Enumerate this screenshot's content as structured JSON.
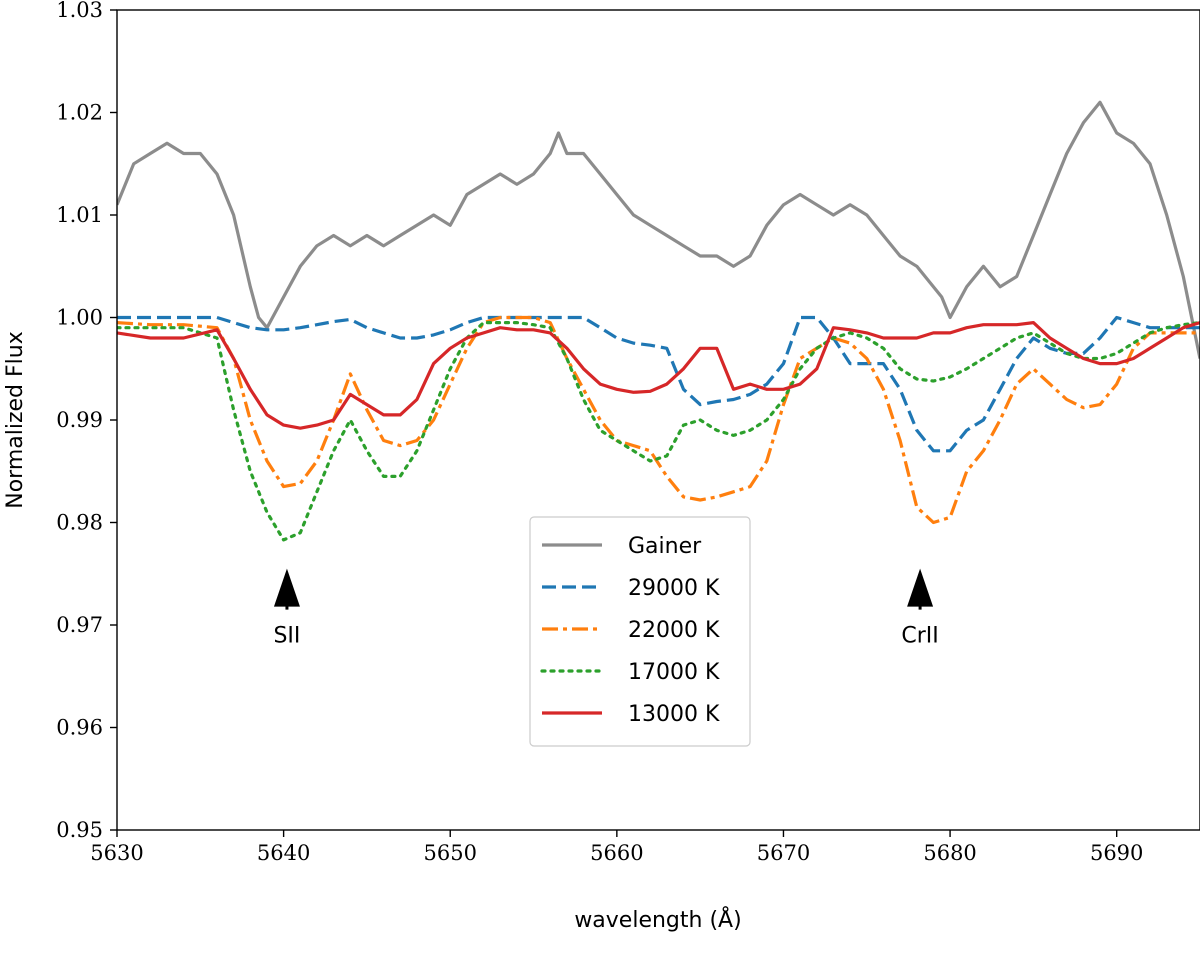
{
  "chart_data": {
    "type": "line",
    "title": "",
    "xlabel": "wavelength (Å)",
    "ylabel": "Normalized Flux",
    "xlim": [
      5630,
      5695
    ],
    "ylim": [
      0.95,
      1.03
    ],
    "xticks": [
      5630,
      5640,
      5650,
      5660,
      5670,
      5680,
      5690
    ],
    "xtick_labels": [
      "5630",
      "5640",
      "5650",
      "5660",
      "5670",
      "5680",
      "5690"
    ],
    "yticks": [
      0.95,
      0.96,
      0.97,
      0.98,
      0.99,
      1.0,
      1.01,
      1.02,
      1.03
    ],
    "ytick_labels": [
      "0.95",
      "0.96",
      "0.97",
      "0.98",
      "0.99",
      "1.00",
      "1.01",
      "1.02",
      "1.03"
    ],
    "grid": false,
    "legend_position": "center",
    "series": [
      {
        "name": "Gainer",
        "color": "#8c8c8c",
        "style": "solid",
        "x": [
          5630,
          5631,
          5632,
          5633,
          5634,
          5635,
          5636,
          5637,
          5638,
          5638.5,
          5639,
          5640,
          5641,
          5642,
          5643,
          5644,
          5645,
          5646,
          5647,
          5648,
          5649,
          5650,
          5651,
          5652,
          5653,
          5654,
          5655,
          5656,
          5656.5,
          5657,
          5658,
          5659,
          5660,
          5661,
          5662,
          5663,
          5664,
          5665,
          5666,
          5667,
          5668,
          5669,
          5670,
          5671,
          5672,
          5673,
          5674,
          5675,
          5676,
          5677,
          5678,
          5679,
          5679.5,
          5680,
          5681,
          5682,
          5683,
          5684,
          5685,
          5686,
          5687,
          5688,
          5689,
          5690,
          5691,
          5692,
          5693,
          5694,
          5695
        ],
        "y": [
          1.011,
          1.015,
          1.016,
          1.017,
          1.016,
          1.016,
          1.014,
          1.01,
          1.003,
          1.0,
          0.999,
          1.002,
          1.005,
          1.007,
          1.008,
          1.007,
          1.008,
          1.007,
          1.008,
          1.009,
          1.01,
          1.009,
          1.012,
          1.013,
          1.014,
          1.013,
          1.014,
          1.016,
          1.018,
          1.016,
          1.016,
          1.014,
          1.012,
          1.01,
          1.009,
          1.008,
          1.007,
          1.006,
          1.006,
          1.005,
          1.006,
          1.009,
          1.011,
          1.012,
          1.011,
          1.01,
          1.011,
          1.01,
          1.008,
          1.006,
          1.005,
          1.003,
          1.002,
          1.0,
          1.003,
          1.005,
          1.003,
          1.004,
          1.008,
          1.012,
          1.016,
          1.019,
          1.021,
          1.018,
          1.017,
          1.015,
          1.01,
          1.004,
          0.996
        ]
      },
      {
        "name": "29000 K",
        "color": "#1f77b4",
        "style": "dashed",
        "x": [
          5630,
          5632,
          5634,
          5636,
          5637,
          5638,
          5639,
          5640,
          5641,
          5642,
          5643,
          5644,
          5645,
          5646,
          5647,
          5648,
          5649,
          5650,
          5651,
          5652,
          5653,
          5654,
          5655,
          5656,
          5657,
          5658,
          5659,
          5660,
          5661,
          5662,
          5663,
          5664,
          5665,
          5666,
          5667,
          5668,
          5669,
          5670,
          5671,
          5672,
          5673,
          5674,
          5675,
          5676,
          5677,
          5678,
          5679,
          5680,
          5681,
          5682,
          5683,
          5684,
          5685,
          5686,
          5687,
          5688,
          5689,
          5690,
          5691,
          5692,
          5693,
          5694,
          5695
        ],
        "y": [
          1.0,
          1.0,
          1.0,
          1.0,
          0.9995,
          0.999,
          0.9988,
          0.9988,
          0.999,
          0.9993,
          0.9996,
          0.9998,
          0.999,
          0.9985,
          0.998,
          0.998,
          0.9983,
          0.9988,
          0.9995,
          1.0,
          1.0,
          1.0,
          1.0,
          1.0,
          1.0,
          1.0,
          0.999,
          0.998,
          0.9975,
          0.9973,
          0.997,
          0.993,
          0.9915,
          0.9918,
          0.992,
          0.9925,
          0.9935,
          0.9955,
          1.0,
          1.0,
          0.998,
          0.9955,
          0.9955,
          0.9955,
          0.993,
          0.989,
          0.987,
          0.987,
          0.989,
          0.99,
          0.993,
          0.996,
          0.998,
          0.997,
          0.9965,
          0.9965,
          0.998,
          1.0,
          0.9995,
          0.999,
          0.999,
          0.999,
          0.999
        ]
      },
      {
        "name": "22000 K",
        "color": "#ff7f0e",
        "style": "dashdot",
        "x": [
          5630,
          5632,
          5634,
          5636,
          5637,
          5638,
          5639,
          5640,
          5641,
          5642,
          5643,
          5644,
          5645,
          5646,
          5647,
          5648,
          5649,
          5650,
          5651,
          5652,
          5653,
          5654,
          5655,
          5656,
          5657,
          5658,
          5659,
          5660,
          5661,
          5662,
          5663,
          5664,
          5665,
          5666,
          5667,
          5668,
          5669,
          5670,
          5671,
          5672,
          5673,
          5674,
          5675,
          5676,
          5677,
          5678,
          5679,
          5680,
          5681,
          5682,
          5683,
          5684,
          5685,
          5686,
          5687,
          5688,
          5689,
          5690,
          5691,
          5692,
          5693,
          5694,
          5695
        ],
        "y": [
          0.9995,
          0.9993,
          0.9993,
          0.999,
          0.996,
          0.99,
          0.986,
          0.9835,
          0.9838,
          0.986,
          0.99,
          0.9945,
          0.991,
          0.988,
          0.9875,
          0.988,
          0.99,
          0.9935,
          0.997,
          0.9995,
          1.0,
          1.0,
          1.0,
          0.9995,
          0.996,
          0.993,
          0.99,
          0.988,
          0.9875,
          0.987,
          0.9845,
          0.9825,
          0.9822,
          0.9825,
          0.983,
          0.9835,
          0.986,
          0.9915,
          0.996,
          0.997,
          0.998,
          0.9975,
          0.996,
          0.993,
          0.988,
          0.9815,
          0.98,
          0.9805,
          0.985,
          0.987,
          0.99,
          0.9935,
          0.995,
          0.9935,
          0.992,
          0.9912,
          0.9915,
          0.9935,
          0.997,
          0.9985,
          0.9985,
          0.9985,
          0.9985
        ]
      },
      {
        "name": "17000 K",
        "color": "#2ca02c",
        "style": "dotted",
        "x": [
          5630,
          5632,
          5634,
          5636,
          5637,
          5638,
          5639,
          5640,
          5641,
          5642,
          5643,
          5644,
          5645,
          5646,
          5647,
          5648,
          5649,
          5650,
          5651,
          5652,
          5653,
          5654,
          5655,
          5656,
          5657,
          5658,
          5659,
          5660,
          5661,
          5662,
          5663,
          5664,
          5665,
          5666,
          5667,
          5668,
          5669,
          5670,
          5671,
          5672,
          5673,
          5674,
          5675,
          5676,
          5677,
          5678,
          5679,
          5680,
          5681,
          5682,
          5683,
          5684,
          5685,
          5686,
          5687,
          5688,
          5689,
          5690,
          5691,
          5692,
          5693,
          5694,
          5695
        ],
        "y": [
          0.999,
          0.999,
          0.999,
          0.998,
          0.991,
          0.985,
          0.981,
          0.9783,
          0.979,
          0.983,
          0.987,
          0.99,
          0.987,
          0.9845,
          0.9845,
          0.987,
          0.991,
          0.995,
          0.998,
          0.9995,
          0.9995,
          0.9995,
          0.9993,
          0.999,
          0.996,
          0.992,
          0.989,
          0.988,
          0.987,
          0.986,
          0.9865,
          0.9895,
          0.99,
          0.989,
          0.9885,
          0.989,
          0.99,
          0.992,
          0.995,
          0.997,
          0.998,
          0.9985,
          0.998,
          0.997,
          0.995,
          0.994,
          0.9938,
          0.9942,
          0.995,
          0.996,
          0.997,
          0.998,
          0.9985,
          0.9975,
          0.9965,
          0.996,
          0.996,
          0.9965,
          0.9975,
          0.9985,
          0.999,
          0.9993,
          0.9995
        ]
      },
      {
        "name": "13000 K",
        "color": "#d62728",
        "style": "solid",
        "x": [
          5630,
          5632,
          5634,
          5636,
          5637,
          5638,
          5639,
          5640,
          5641,
          5642,
          5643,
          5644,
          5645,
          5646,
          5647,
          5648,
          5649,
          5650,
          5651,
          5652,
          5653,
          5654,
          5655,
          5656,
          5657,
          5658,
          5659,
          5660,
          5661,
          5662,
          5663,
          5664,
          5665,
          5666,
          5667,
          5668,
          5669,
          5670,
          5671,
          5672,
          5673,
          5674,
          5675,
          5676,
          5677,
          5678,
          5679,
          5680,
          5681,
          5682,
          5683,
          5684,
          5685,
          5686,
          5687,
          5688,
          5689,
          5690,
          5691,
          5692,
          5693,
          5694,
          5695
        ],
        "y": [
          0.9985,
          0.998,
          0.998,
          0.9988,
          0.996,
          0.993,
          0.9905,
          0.9895,
          0.9892,
          0.9895,
          0.99,
          0.9925,
          0.9915,
          0.9905,
          0.9905,
          0.992,
          0.9955,
          0.997,
          0.998,
          0.9985,
          0.999,
          0.9988,
          0.9988,
          0.9985,
          0.997,
          0.995,
          0.9935,
          0.993,
          0.9927,
          0.9928,
          0.9935,
          0.995,
          0.997,
          0.997,
          0.993,
          0.9935,
          0.993,
          0.993,
          0.9935,
          0.995,
          0.999,
          0.9988,
          0.9985,
          0.998,
          0.998,
          0.998,
          0.9985,
          0.9985,
          0.999,
          0.9993,
          0.9993,
          0.9993,
          0.9995,
          0.998,
          0.997,
          0.996,
          0.9955,
          0.9955,
          0.996,
          0.997,
          0.998,
          0.999,
          0.9995
        ]
      }
    ],
    "annotations": [
      {
        "text": "SII",
        "x": 5640.2,
        "arrow_tail_y": 0.9715,
        "arrow_head_y": 0.9755
      },
      {
        "text": "CrII",
        "x": 5678.2,
        "arrow_tail_y": 0.9715,
        "arrow_head_y": 0.9755
      }
    ]
  }
}
